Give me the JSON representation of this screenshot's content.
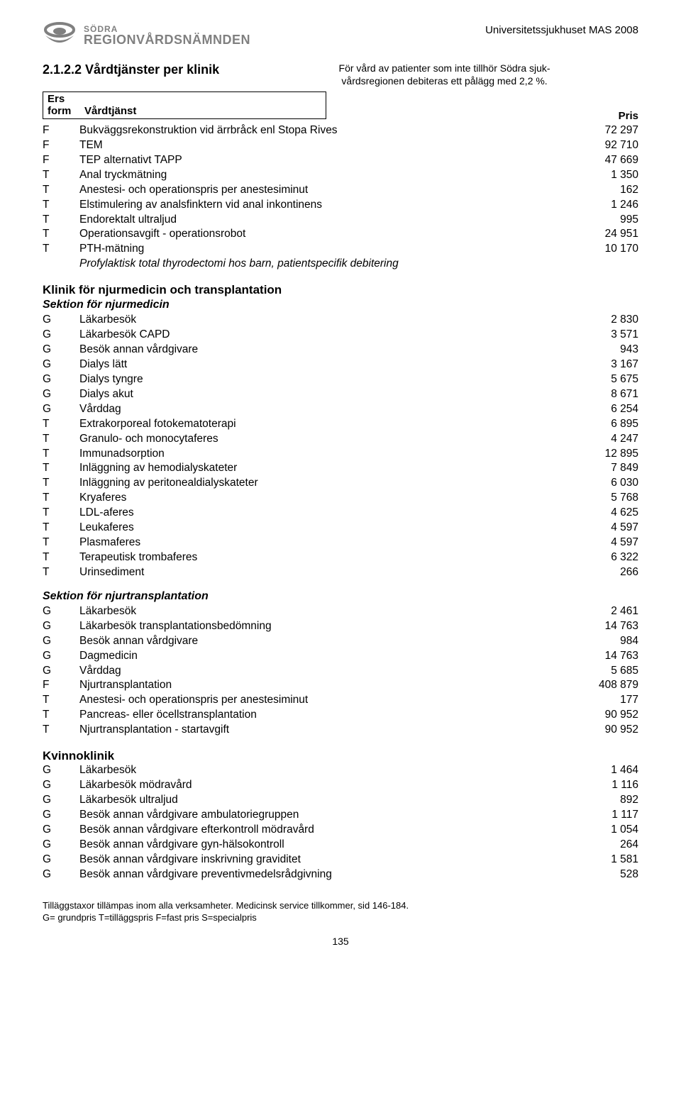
{
  "header": {
    "logo_line1": "SÖDRA",
    "logo_line2": "REGIONVÅRDSNÄMNDEN",
    "right_text": "Universitetssjukhuset MAS 2008"
  },
  "section": {
    "number_title": "2.1.2.2  Vårdtjänster per klinik",
    "note_line1": "För vård av patienter som inte tillhör Södra sjuk-",
    "note_line2": "vårdsregionen debiteras ett pålägg med 2,2 %."
  },
  "col_headers": {
    "c1a": "Ers",
    "c1b": "form",
    "c2": "Vårdtjänst",
    "price": "Pris"
  },
  "block1": {
    "rows": [
      {
        "code": "F",
        "desc": "Bukväggsrekonstruktion vid ärrbråck enl Stopa Rives",
        "price": "72 297"
      },
      {
        "code": "F",
        "desc": "TEM",
        "price": "92 710"
      },
      {
        "code": "F",
        "desc": "TEP alternativt TAPP",
        "price": "47 669"
      },
      {
        "code": "T",
        "desc": "Anal tryckmätning",
        "price": "1 350"
      },
      {
        "code": "T",
        "desc": "Anestesi- och operationspris per anestesiminut",
        "price": "162"
      },
      {
        "code": "T",
        "desc": "Elstimulering av analsfinktern vid anal inkontinens",
        "price": "1 246"
      },
      {
        "code": "T",
        "desc": "Endorektalt ultraljud",
        "price": "995"
      },
      {
        "code": "T",
        "desc": "Operationsavgift - operationsrobot",
        "price": "24 951"
      },
      {
        "code": "T",
        "desc": "PTH-mätning",
        "price": "10 170"
      },
      {
        "code": "",
        "desc": "Profylaktisk total thyrodectomi hos barn, patientspecifik debitering",
        "price": "",
        "italic": true
      }
    ]
  },
  "block2": {
    "heading": "Klinik för njurmedicin och transplantation",
    "subheading": "Sektion för njurmedicin",
    "rows": [
      {
        "code": "G",
        "desc": "Läkarbesök",
        "price": "2 830"
      },
      {
        "code": "G",
        "desc": "Läkarbesök CAPD",
        "price": "3 571"
      },
      {
        "code": "G",
        "desc": "Besök annan vårdgivare",
        "price": "943"
      },
      {
        "code": "G",
        "desc": "Dialys lätt",
        "price": "3 167"
      },
      {
        "code": "G",
        "desc": "Dialys tyngre",
        "price": "5 675"
      },
      {
        "code": "G",
        "desc": "Dialys akut",
        "price": "8 671"
      },
      {
        "code": "G",
        "desc": "Vårddag",
        "price": "6 254"
      },
      {
        "code": "T",
        "desc": "Extrakorporeal fotokematoterapi",
        "price": "6 895"
      },
      {
        "code": "T",
        "desc": "Granulo- och monocytaferes",
        "price": "4 247"
      },
      {
        "code": "T",
        "desc": "Immunadsorption",
        "price": "12 895"
      },
      {
        "code": "T",
        "desc": "Inläggning av hemodialyskateter",
        "price": "7 849"
      },
      {
        "code": "T",
        "desc": "Inläggning av peritonealdialyskateter",
        "price": "6 030"
      },
      {
        "code": "T",
        "desc": "Kryaferes",
        "price": "5 768"
      },
      {
        "code": "T",
        "desc": "LDL-aferes",
        "price": "4 625"
      },
      {
        "code": "T",
        "desc": "Leukaferes",
        "price": "4 597"
      },
      {
        "code": "T",
        "desc": "Plasmaferes",
        "price": "4 597"
      },
      {
        "code": "T",
        "desc": "Terapeutisk trombaferes",
        "price": "6 322"
      },
      {
        "code": "T",
        "desc": "Urinsediment",
        "price": "266"
      }
    ]
  },
  "block3": {
    "subheading": "Sektion för njurtransplantation",
    "rows": [
      {
        "code": "G",
        "desc": "Läkarbesök",
        "price": "2 461"
      },
      {
        "code": "G",
        "desc": "Läkarbesök transplantationsbedömning",
        "price": "14 763"
      },
      {
        "code": "G",
        "desc": "Besök annan vårdgivare",
        "price": "984"
      },
      {
        "code": "G",
        "desc": "Dagmedicin",
        "price": "14 763"
      },
      {
        "code": "G",
        "desc": "Vårddag",
        "price": "5 685"
      },
      {
        "code": "F",
        "desc": "Njurtransplantation",
        "price": "408 879"
      },
      {
        "code": "T",
        "desc": "Anestesi- och operationspris per anestesiminut",
        "price": "177"
      },
      {
        "code": "T",
        "desc": "Pancreas- eller öcellstransplantation",
        "price": "90 952"
      },
      {
        "code": "T",
        "desc": "Njurtransplantation - startavgift",
        "price": "90 952"
      }
    ]
  },
  "block4": {
    "heading": "Kvinnoklinik",
    "rows": [
      {
        "code": "G",
        "desc": "Läkarbesök",
        "price": "1 464"
      },
      {
        "code": "G",
        "desc": "Läkarbesök mödravård",
        "price": "1 116"
      },
      {
        "code": "G",
        "desc": "Läkarbesök ultraljud",
        "price": "892"
      },
      {
        "code": "G",
        "desc": "Besök annan vårdgivare ambulatoriegruppen",
        "price": "1 117"
      },
      {
        "code": "G",
        "desc": "Besök annan vårdgivare efterkontroll mödravård",
        "price": "1 054"
      },
      {
        "code": "G",
        "desc": "Besök annan vårdgivare gyn-hälsokontroll",
        "price": "264"
      },
      {
        "code": "G",
        "desc": "Besök annan vårdgivare inskrivning graviditet",
        "price": "1 581"
      },
      {
        "code": "G",
        "desc": "Besök annan vårdgivare preventivmedelsrådgivning",
        "price": "528"
      }
    ]
  },
  "footer": {
    "line1": "Tilläggstaxor tillämpas inom alla verksamheter. Medicinsk service tillkommer, sid 146-184.",
    "line2": "G= grundpris  T=tilläggspris  F=fast pris  S=specialpris",
    "page": "135"
  }
}
